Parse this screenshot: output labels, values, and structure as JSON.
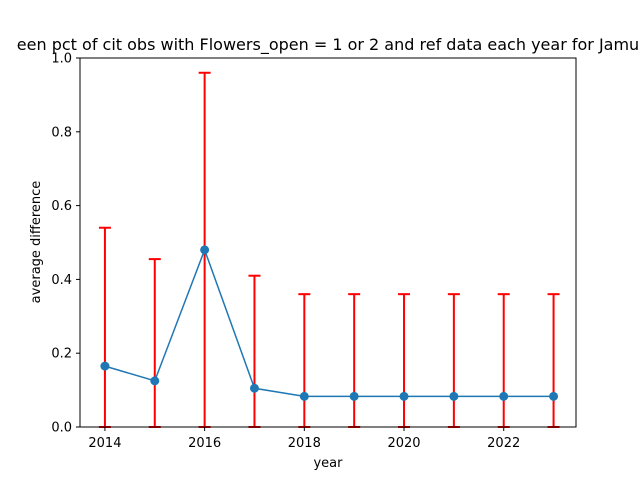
{
  "chart_data": {
    "type": "line",
    "title": "een pct of cit obs with Flowers_open = 1 or 2 and ref data each year for Jamu",
    "xlabel": "year",
    "ylabel": "average difference",
    "xlim": [
      2013.5,
      2023.45
    ],
    "ylim": [
      0.0,
      1.0
    ],
    "x_ticks": [
      2014,
      2016,
      2018,
      2020,
      2022
    ],
    "y_ticks": [
      0.0,
      0.2,
      0.4,
      0.6,
      0.8,
      1.0
    ],
    "grid": false,
    "series": [
      {
        "x": [
          2014,
          2015,
          2016,
          2017,
          2018,
          2019,
          2020,
          2021,
          2022,
          2023
        ],
        "values": [
          0.165,
          0.125,
          0.48,
          0.105,
          0.083,
          0.083,
          0.083,
          0.083,
          0.083,
          0.083
        ],
        "color": "#1f77b4"
      }
    ],
    "error_bars": {
      "lower": [
        0.0,
        0.0,
        0.0,
        0.0,
        0.0,
        0.0,
        0.0,
        0.0,
        0.0,
        0.0
      ],
      "upper": [
        0.54,
        0.455,
        0.96,
        0.41,
        0.36,
        0.36,
        0.36,
        0.36,
        0.36,
        0.36
      ],
      "color": "#ff0000"
    }
  }
}
